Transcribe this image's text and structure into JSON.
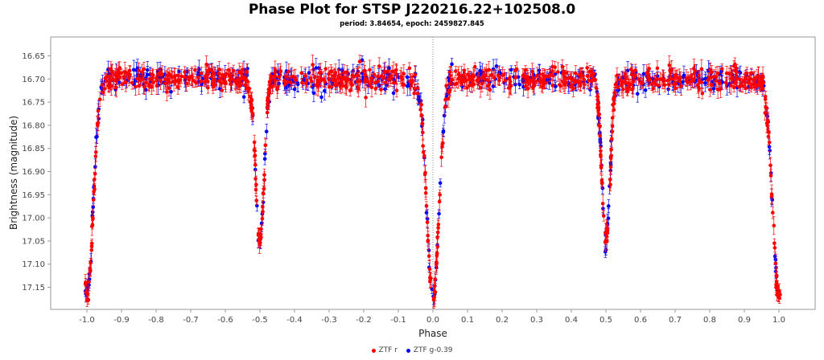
{
  "chart_data": {
    "type": "scatter",
    "title": "Phase Plot for STSP J220216.22+102508.0",
    "subtitle": "period: 3.84654, epoch: 2459827.845",
    "xlabel": "Phase",
    "ylabel": "Brightness (magnitude)",
    "xlim": [
      -1.1,
      1.1
    ],
    "ylim": [
      17.2,
      16.61
    ],
    "y_inverted": true,
    "x_ticks": [
      "-1.0",
      "-0.9",
      "-0.8",
      "-0.7",
      "-0.6",
      "-0.5",
      "-0.4",
      "-0.3",
      "-0.2",
      "-0.1",
      "0.0",
      "0.1",
      "0.2",
      "0.3",
      "0.4",
      "0.5",
      "0.6",
      "0.7",
      "0.8",
      "0.9",
      "1.0"
    ],
    "y_ticks": [
      "16.65",
      "16.70",
      "16.75",
      "16.80",
      "16.85",
      "16.90",
      "16.95",
      "17.00",
      "17.05",
      "17.10",
      "17.15"
    ],
    "reference_line_x": 0.0,
    "light_curve_model": {
      "baseline_mag": 16.7,
      "primary_eclipse": {
        "phase": 0.0,
        "depth": 0.47,
        "width": 0.025
      },
      "secondary_eclipse": {
        "phase": 0.5,
        "depth": 0.35,
        "width": 0.017
      },
      "scatter": 0.02,
      "typical_error": 0.014
    },
    "series": [
      {
        "name": "ZTF r",
        "color": "#ff0000",
        "n_points": 900
      },
      {
        "name": "ZTF g-0.39",
        "color": "#0000ff",
        "n_points": 500
      }
    ],
    "legend_position": "bottom-center"
  },
  "colors": {
    "axis": "#999999",
    "reference_line": "#888888"
  }
}
